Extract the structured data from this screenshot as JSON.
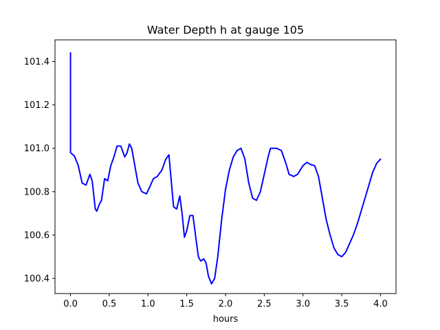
{
  "chart_data": {
    "type": "line",
    "title": "Water Depth h at gauge 105",
    "xlabel": "hours",
    "ylabel": "",
    "xlim": [
      -0.2,
      4.2
    ],
    "ylim": [
      100.33,
      101.5
    ],
    "xticks": [
      0.0,
      0.5,
      1.0,
      1.5,
      2.0,
      2.5,
      3.0,
      3.5,
      4.0
    ],
    "xtick_labels": [
      "0.0",
      "0.5",
      "1.0",
      "1.5",
      "2.0",
      "2.5",
      "3.0",
      "3.5",
      "4.0"
    ],
    "yticks": [
      100.4,
      100.6,
      100.8,
      101.0,
      101.2,
      101.4
    ],
    "ytick_labels": [
      "100.4",
      "100.6",
      "100.8",
      "101.0",
      "101.2",
      "101.4"
    ],
    "grid": false,
    "line_color": "#0000ff",
    "series": [
      {
        "x": [
          0.0,
          0.0,
          0.0,
          0.05,
          0.1,
          0.15,
          0.2,
          0.25,
          0.28,
          0.32,
          0.34,
          0.37,
          0.4,
          0.44,
          0.48,
          0.52,
          0.56,
          0.6,
          0.65,
          0.7,
          0.73,
          0.76,
          0.79,
          0.83,
          0.87,
          0.92,
          0.98,
          1.02,
          1.07,
          1.12,
          1.18,
          1.23,
          1.27,
          1.3,
          1.33,
          1.37,
          1.41,
          1.44,
          1.47,
          1.5,
          1.54,
          1.58,
          1.62,
          1.65,
          1.68,
          1.72,
          1.75,
          1.78,
          1.82,
          1.86,
          1.9,
          1.95,
          2.0,
          2.05,
          2.1,
          2.15,
          2.2,
          2.25,
          2.3,
          2.35,
          2.4,
          2.45,
          2.5,
          2.55,
          2.58,
          2.62,
          2.66,
          2.72,
          2.78,
          2.82,
          2.88,
          2.93,
          3.0,
          3.05,
          3.1,
          3.15,
          3.2,
          3.25,
          3.3,
          3.35,
          3.4,
          3.45,
          3.5,
          3.55,
          3.6,
          3.65,
          3.7,
          3.75,
          3.8,
          3.85,
          3.9,
          3.95,
          4.0
        ],
        "y": [
          101.44,
          101.2,
          100.98,
          100.965,
          100.92,
          100.84,
          100.83,
          100.88,
          100.85,
          100.72,
          100.71,
          100.74,
          100.76,
          100.86,
          100.85,
          100.92,
          100.96,
          101.01,
          101.01,
          100.96,
          100.98,
          101.02,
          101.0,
          100.92,
          100.84,
          100.8,
          100.79,
          100.82,
          100.86,
          100.87,
          100.9,
          100.95,
          100.97,
          100.85,
          100.73,
          100.72,
          100.78,
          100.7,
          100.59,
          100.62,
          100.69,
          100.69,
          100.58,
          100.5,
          100.48,
          100.49,
          100.47,
          100.41,
          100.375,
          100.4,
          100.5,
          100.67,
          100.81,
          100.9,
          100.96,
          100.99,
          101.0,
          100.95,
          100.84,
          100.77,
          100.76,
          100.8,
          100.88,
          100.96,
          101.0,
          101.0,
          101.0,
          100.99,
          100.93,
          100.88,
          100.87,
          100.88,
          100.92,
          100.935,
          100.925,
          100.92,
          100.87,
          100.77,
          100.67,
          100.6,
          100.54,
          100.51,
          100.5,
          100.52,
          100.56,
          100.6,
          100.65,
          100.71,
          100.77,
          100.83,
          100.89,
          100.93,
          100.95
        ]
      }
    ]
  }
}
